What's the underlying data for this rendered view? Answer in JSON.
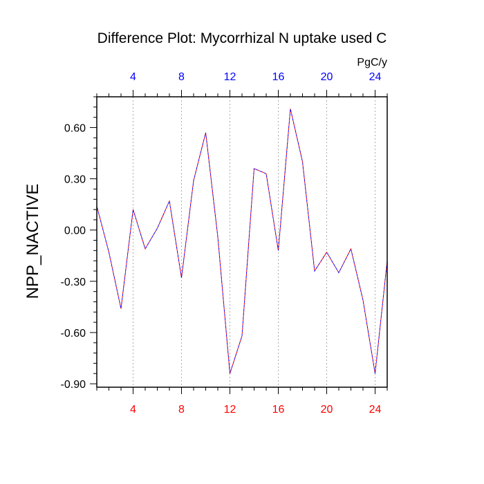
{
  "chart_data": {
    "type": "line",
    "title": "Difference Plot: Mycorrhizal N uptake used C",
    "units_label": "PgC/y",
    "ylabel": "NPP_NACTIVE",
    "xlabel": "",
    "xlim": [
      1,
      25
    ],
    "ylim": [
      -0.92,
      0.78
    ],
    "yticks": [
      -0.9,
      -0.6,
      -0.3,
      0.0,
      0.3,
      0.6
    ],
    "ytick_labels": [
      "-0.90",
      "-0.60",
      "-0.30",
      "0.00",
      "0.30",
      "0.60"
    ],
    "xticks": [
      4,
      8,
      12,
      16,
      20,
      24
    ],
    "xtick_labels": [
      "4",
      "8",
      "12",
      "16",
      "20",
      "24"
    ],
    "grid": "vertical dotted at major x ticks",
    "colors": {
      "top_axis_labels": "#0000ff",
      "bottom_axis_labels": "#ff0000",
      "line_primary": "#ff0000",
      "line_secondary": "#0000ff"
    },
    "series": [
      {
        "x": [
          1,
          2,
          3,
          4,
          5,
          6,
          7,
          8,
          9,
          10,
          11,
          12,
          13,
          14,
          15,
          16,
          17,
          18,
          19,
          20,
          21,
          22,
          23,
          24,
          25
        ],
        "values": [
          0.14,
          -0.13,
          -0.46,
          0.12,
          -0.11,
          0.01,
          0.17,
          -0.28,
          0.29,
          0.57,
          -0.04,
          -0.84,
          -0.62,
          0.36,
          0.33,
          -0.12,
          0.71,
          0.4,
          -0.24,
          -0.13,
          -0.25,
          -0.11,
          -0.41,
          -0.84,
          -0.18
        ]
      }
    ]
  }
}
